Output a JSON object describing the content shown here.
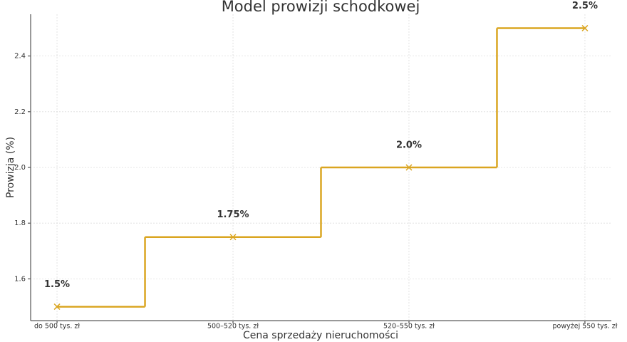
{
  "chart_data": {
    "type": "line",
    "step": "mid",
    "title": "Model prowizji schodkowej",
    "x_label": "Cena sprzedaży nieruchomości",
    "y_label": "Prowizja (%)",
    "categories": [
      "do 500 tys. zł",
      "500–520 tys. zł",
      "520–550 tys. zł",
      "powyżej 550 tys. zł"
    ],
    "values": [
      1.5,
      1.75,
      2.0,
      2.5
    ],
    "value_labels": [
      "1.5%",
      "1.75%",
      "2.0%",
      "2.5%"
    ],
    "color": "#daa520",
    "marker": "x",
    "ylim": [
      1.45,
      2.55
    ],
    "yticks": [
      1.6,
      1.8,
      {
        "value": 2,
        "label": "2.0"
      },
      2.2,
      2.4
    ],
    "grid": true
  }
}
